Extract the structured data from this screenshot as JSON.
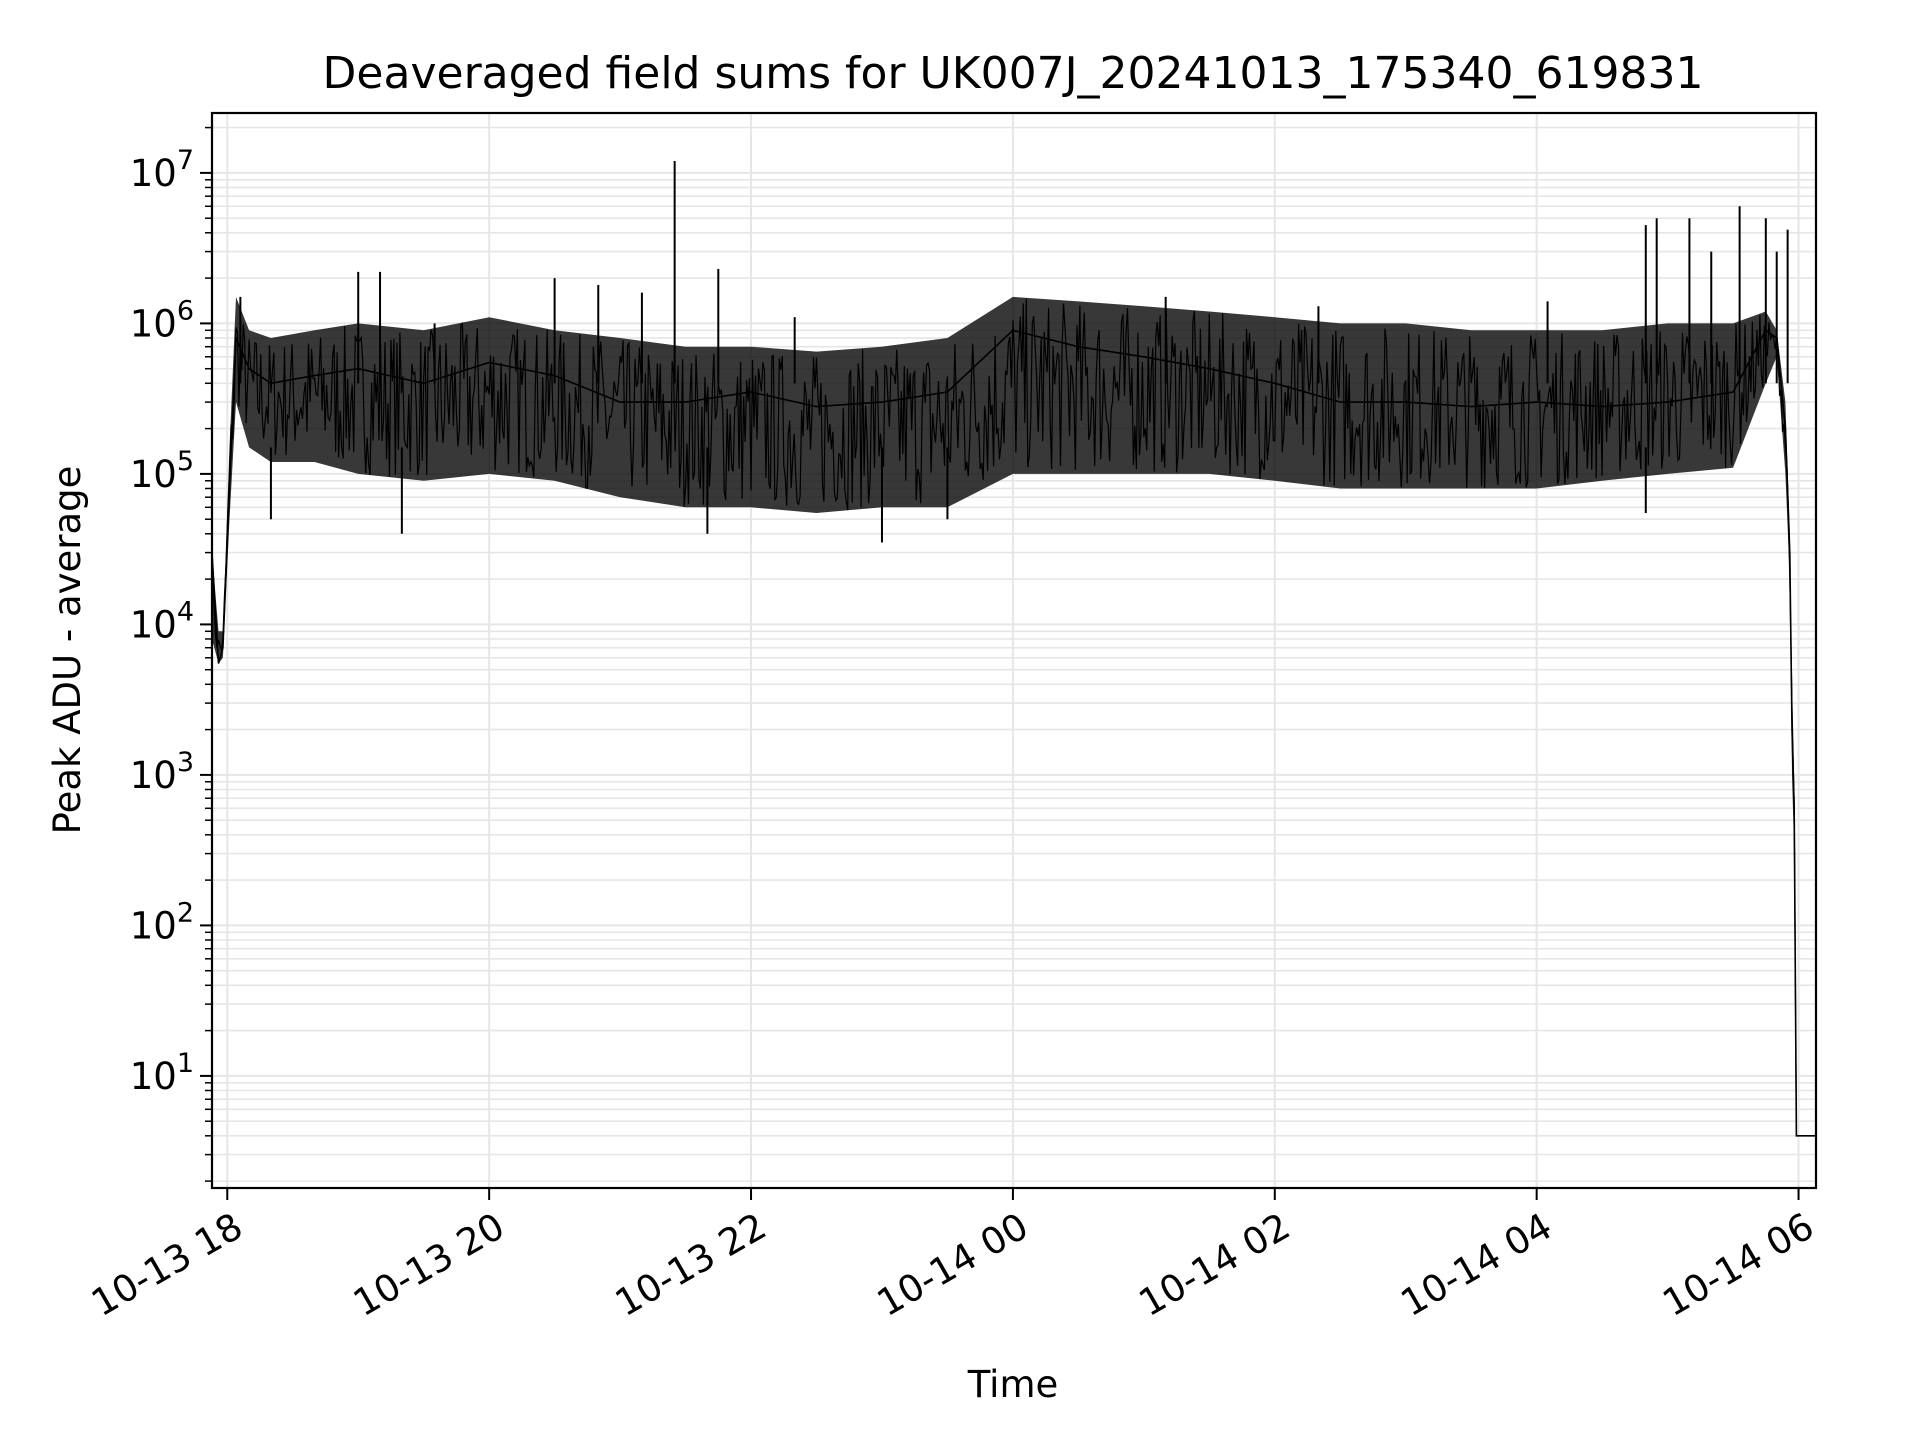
{
  "chart_data": {
    "type": "line",
    "title": "Deaveraged field sums for UK007J_20241013_175340_619831",
    "xlabel": "Time",
    "ylabel": "Peak ADU - average",
    "x_scale": "time",
    "y_scale": "log",
    "xlim": [
      "2024-10-13 17:53",
      "2024-10-14 06:08"
    ],
    "ylim": [
      1.8,
      25000000
    ],
    "grid": true,
    "legend": "none",
    "line_color": "#000000",
    "grid_color": "#e6e6e6",
    "x_ticks": [
      {
        "value": "2024-10-13 18:00",
        "label": "10-13 18"
      },
      {
        "value": "2024-10-13 20:00",
        "label": "10-13 20"
      },
      {
        "value": "2024-10-13 22:00",
        "label": "10-13 22"
      },
      {
        "value": "2024-10-14 00:00",
        "label": "10-14 00"
      },
      {
        "value": "2024-10-14 02:00",
        "label": "10-14 02"
      },
      {
        "value": "2024-10-14 04:00",
        "label": "10-14 04"
      },
      {
        "value": "2024-10-14 06:00",
        "label": "10-14 06"
      }
    ],
    "y_ticks": [
      {
        "value": 10,
        "base": "10",
        "exp": "1"
      },
      {
        "value": 100,
        "base": "10",
        "exp": "2"
      },
      {
        "value": 1000,
        "base": "10",
        "exp": "3"
      },
      {
        "value": 10000,
        "base": "10",
        "exp": "4"
      },
      {
        "value": 100000,
        "base": "10",
        "exp": "5"
      },
      {
        "value": 1000000,
        "base": "10",
        "exp": "6"
      },
      {
        "value": 10000000,
        "base": "10",
        "exp": "7"
      }
    ],
    "series": [
      {
        "x": [
          "2024-10-13 17:53",
          "2024-10-13 17:56",
          "2024-10-13 17:58",
          "2024-10-13 18:01",
          "2024-10-13 18:04",
          "2024-10-13 18:10",
          "2024-10-13 18:20",
          "2024-10-13 18:40",
          "2024-10-13 19:00",
          "2024-10-13 19:30",
          "2024-10-13 20:00",
          "2024-10-13 20:30",
          "2024-10-13 21:00",
          "2024-10-13 21:30",
          "2024-10-13 22:00",
          "2024-10-13 22:30",
          "2024-10-13 23:00",
          "2024-10-13 23:30",
          "2024-10-14 00:00",
          "2024-10-14 00:30",
          "2024-10-14 01:00",
          "2024-10-14 01:30",
          "2024-10-14 02:00",
          "2024-10-14 02:30",
          "2024-10-14 03:00",
          "2024-10-14 03:30",
          "2024-10-14 04:00",
          "2024-10-14 04:30",
          "2024-10-14 05:00",
          "2024-10-14 05:30",
          "2024-10-14 05:45",
          "2024-10-14 05:50",
          "2024-10-14 05:54",
          "2024-10-14 05:56",
          "2024-10-14 05:57",
          "2024-10-14 05:58",
          "2024-10-14 05:59",
          "2024-10-14 06:08"
        ],
        "y": [
          30000,
          5500,
          7000,
          80000,
          800000,
          500000,
          400000,
          450000,
          500000,
          400000,
          550000,
          450000,
          300000,
          300000,
          350000,
          280000,
          300000,
          350000,
          900000,
          700000,
          600000,
          500000,
          400000,
          300000,
          300000,
          280000,
          300000,
          280000,
          300000,
          350000,
          900000,
          800000,
          200000,
          30000,
          2000,
          600,
          4,
          4
        ],
        "upper": [
          30000,
          9000,
          9000,
          150000,
          1500000,
          900000,
          800000,
          900000,
          1000000,
          900000,
          1100000,
          900000,
          800000,
          700000,
          700000,
          650000,
          700000,
          800000,
          1500000,
          1400000,
          1300000,
          1200000,
          1100000,
          1000000,
          1000000,
          900000,
          900000,
          900000,
          1000000,
          1000000,
          1200000,
          900000,
          300000,
          40000,
          3000,
          700,
          4,
          4
        ],
        "lower": [
          8000,
          5500,
          6000,
          50000,
          300000,
          150000,
          120000,
          120000,
          100000,
          90000,
          100000,
          90000,
          70000,
          60000,
          60000,
          55000,
          60000,
          60000,
          100000,
          100000,
          100000,
          100000,
          90000,
          80000,
          80000,
          80000,
          80000,
          90000,
          100000,
          110000,
          400000,
          600000,
          100000,
          20000,
          1000,
          300,
          4,
          4
        ],
        "spikes": [
          {
            "x": "2024-10-13 18:06",
            "y": 1500000
          },
          {
            "x": "2024-10-13 19:00",
            "y": 2200000
          },
          {
            "x": "2024-10-13 19:10",
            "y": 2200000
          },
          {
            "x": "2024-10-13 19:35",
            "y": 1000000
          },
          {
            "x": "2024-10-13 20:30",
            "y": 2000000
          },
          {
            "x": "2024-10-13 20:50",
            "y": 1800000
          },
          {
            "x": "2024-10-13 21:10",
            "y": 1600000
          },
          {
            "x": "2024-10-13 21:25",
            "y": 12000000
          },
          {
            "x": "2024-10-13 21:45",
            "y": 2300000
          },
          {
            "x": "2024-10-13 22:20",
            "y": 1100000
          },
          {
            "x": "2024-10-14 01:10",
            "y": 1500000
          },
          {
            "x": "2024-10-14 02:20",
            "y": 1300000
          },
          {
            "x": "2024-10-14 04:05",
            "y": 1400000
          },
          {
            "x": "2024-10-14 04:50",
            "y": 4500000
          },
          {
            "x": "2024-10-14 04:55",
            "y": 5000000
          },
          {
            "x": "2024-10-14 05:10",
            "y": 5000000
          },
          {
            "x": "2024-10-14 05:20",
            "y": 3000000
          },
          {
            "x": "2024-10-14 05:33",
            "y": 6000000
          },
          {
            "x": "2024-10-14 05:45",
            "y": 5000000
          },
          {
            "x": "2024-10-14 05:50",
            "y": 3000000
          },
          {
            "x": "2024-10-14 05:55",
            "y": 4200000
          }
        ],
        "dips": [
          {
            "x": "2024-10-13 18:20",
            "y": 50000
          },
          {
            "x": "2024-10-13 19:20",
            "y": 40000
          },
          {
            "x": "2024-10-13 21:40",
            "y": 40000
          },
          {
            "x": "2024-10-13 23:00",
            "y": 35000
          },
          {
            "x": "2024-10-13 23:30",
            "y": 50000
          },
          {
            "x": "2024-10-14 04:50",
            "y": 55000
          }
        ]
      }
    ]
  }
}
